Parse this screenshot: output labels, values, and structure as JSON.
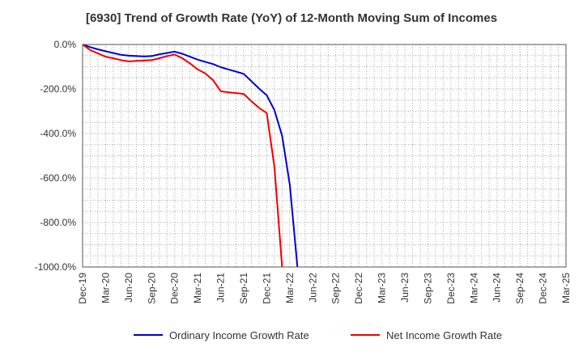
{
  "chart_data": {
    "type": "line",
    "title": "[6930]  Trend of Growth Rate (YoY) of 12-Month Moving Sum of Incomes",
    "xlabel": "",
    "ylabel": "",
    "ylim": [
      -1000,
      0
    ],
    "y_ticks": [
      0,
      -200,
      -400,
      -600,
      -800,
      -1000
    ],
    "y_tick_labels": [
      "0.0%",
      "-200.0%",
      "-400.0%",
      "-600.0%",
      "-800.0%",
      "-1000.0%"
    ],
    "x_tick_labels": [
      "Dec-19",
      "Mar-20",
      "Jun-20",
      "Sep-20",
      "Dec-20",
      "Mar-21",
      "Jun-21",
      "Sep-21",
      "Dec-21",
      "Mar-22",
      "Jun-22",
      "Sep-22",
      "Dec-22",
      "Mar-23",
      "Jun-23",
      "Sep-23",
      "Dec-23",
      "Mar-24",
      "Jun-24",
      "Sep-24",
      "Dec-24",
      "Mar-25"
    ],
    "grid": true,
    "legend_position": "bottom",
    "series": [
      {
        "name": "Ordinary Income Growth Rate",
        "color": "#0000cc",
        "x": [
          "Dec-19",
          "Jan-20",
          "Feb-20",
          "Mar-20",
          "Apr-20",
          "May-20",
          "Jun-20",
          "Jul-20",
          "Aug-20",
          "Sep-20",
          "Oct-20",
          "Nov-20",
          "Dec-20",
          "Jan-21",
          "Feb-21",
          "Mar-21",
          "Apr-21",
          "May-21",
          "Jun-21",
          "Jul-21",
          "Aug-21",
          "Sep-21",
          "Oct-21",
          "Nov-21",
          "Dec-21",
          "Jan-22",
          "Feb-22",
          "Mar-22",
          "Apr-22"
        ],
        "values": [
          0,
          -12,
          -22,
          -30,
          -38,
          -46,
          -50,
          -52,
          -54,
          -52,
          -44,
          -38,
          -32,
          -42,
          -55,
          -68,
          -78,
          -88,
          -102,
          -112,
          -122,
          -132,
          -165,
          -198,
          -228,
          -295,
          -410,
          -630,
          -1000
        ]
      },
      {
        "name": "Net Income Growth Rate",
        "color": "#ee0000",
        "x": [
          "Dec-19",
          "Jan-20",
          "Feb-20",
          "Mar-20",
          "Apr-20",
          "May-20",
          "Jun-20",
          "Jul-20",
          "Aug-20",
          "Sep-20",
          "Oct-20",
          "Nov-20",
          "Dec-20",
          "Jan-21",
          "Feb-21",
          "Mar-21",
          "Apr-21",
          "May-21",
          "Jun-21",
          "Jul-21",
          "Aug-21",
          "Sep-21",
          "Oct-21",
          "Nov-21",
          "Dec-21",
          "Jan-22",
          "Feb-22"
        ],
        "values": [
          0,
          -25,
          -40,
          -55,
          -62,
          -70,
          -76,
          -74,
          -72,
          -70,
          -62,
          -52,
          -45,
          -62,
          -85,
          -112,
          -130,
          -160,
          -210,
          -215,
          -218,
          -222,
          -255,
          -285,
          -308,
          -550,
          -1000
        ]
      }
    ]
  }
}
